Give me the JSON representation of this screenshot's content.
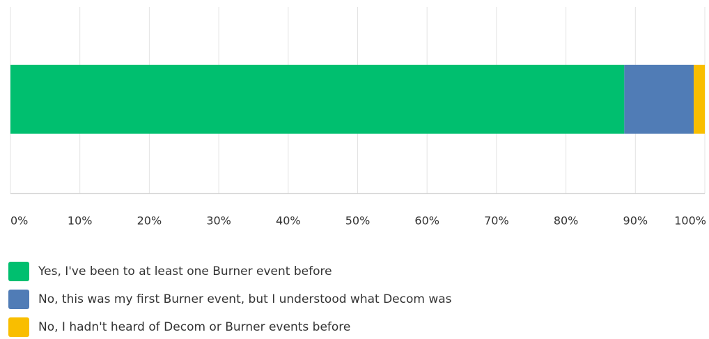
{
  "chart_data": {
    "type": "stacked_bar_horizontal",
    "categories": [
      null
    ],
    "series": [
      {
        "name": "Yes, I've been to at least one Burner event before",
        "color": "#00bf6f",
        "values": [
          88.4
        ]
      },
      {
        "name": "No, this was my first Burner event, but I understood what Decom was",
        "color": "#507cb6",
        "values": [
          10.0
        ]
      },
      {
        "name": "No, I hadn't heard of Decom or Burner events before",
        "color": "#f9be00",
        "values": [
          1.6
        ]
      }
    ],
    "xlim": [
      0,
      100
    ],
    "xticks": [
      {
        "value": 0,
        "label": "0%"
      },
      {
        "value": 10,
        "label": "10%"
      },
      {
        "value": 20,
        "label": "20%"
      },
      {
        "value": 30,
        "label": "30%"
      },
      {
        "value": 40,
        "label": "40%"
      },
      {
        "value": 50,
        "label": "50%"
      },
      {
        "value": 60,
        "label": "60%"
      },
      {
        "value": 70,
        "label": "70%"
      },
      {
        "value": 80,
        "label": "80%"
      },
      {
        "value": 90,
        "label": "90%"
      },
      {
        "value": 100,
        "label": "100%"
      }
    ],
    "grid": true
  }
}
